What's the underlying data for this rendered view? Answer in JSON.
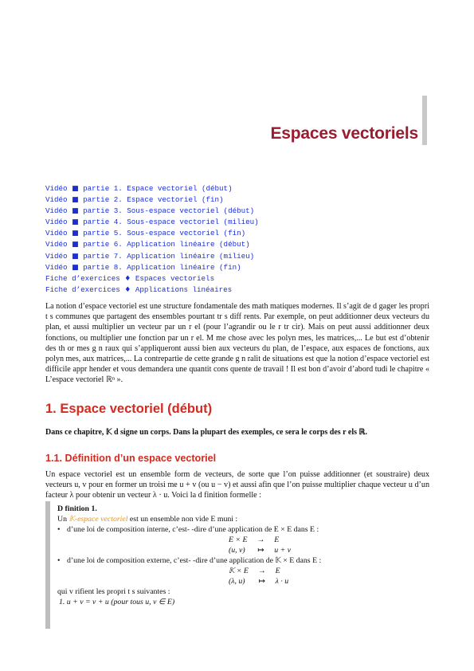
{
  "chapter": {
    "title": "Espaces vectoriels"
  },
  "links": [
    {
      "label": "Vidéo",
      "sym": "■",
      "text": "partie 1. Espace vectoriel (début)"
    },
    {
      "label": "Vidéo",
      "sym": "■",
      "text": "partie 2. Espace vectoriel (fin)"
    },
    {
      "label": "Vidéo",
      "sym": "■",
      "text": "partie 3. Sous-espace vectoriel (début)"
    },
    {
      "label": "Vidéo",
      "sym": "■",
      "text": "partie 4. Sous-espace vectoriel (milieu)"
    },
    {
      "label": "Vidéo",
      "sym": "■",
      "text": "partie 5. Sous-espace vectoriel (fin)"
    },
    {
      "label": "Vidéo",
      "sym": "■",
      "text": "partie 6. Application linéaire (début)"
    },
    {
      "label": "Vidéo",
      "sym": "■",
      "text": "partie 7. Application linéaire (milieu)"
    },
    {
      "label": "Vidéo",
      "sym": "■",
      "text": "partie 8. Application linéaire (fin)"
    },
    {
      "label": "Fiche d’exercices",
      "sym": "♦",
      "text": "Espaces vectoriels"
    },
    {
      "label": "Fiche d’exercices",
      "sym": "♦",
      "text": "Applications linéaires"
    }
  ],
  "intro": {
    "text": "La notion d’espace vectoriel est une structure fondamentale des math matiques modernes. Il s’agit de d gager les propri t s communes que partagent des ensembles pourtant tr s diff rents. Par exemple, on peut additionner deux vecteurs du plan, et aussi multiplier un vecteur par un r el (pour l’agrandir ou le r tr cir). Mais on peut aussi additionner deux fonctions, ou multiplier une fonction par un r el. M me chose avec les polyn mes, les matrices,... Le but est d’obtenir des th or mes g n raux qui s’appliqueront aussi bien aux vecteurs du plan, de l’espace, aux espaces de fonctions, aux polyn mes, aux matrices,... La contrepartie de cette grande g n ralit de situations est que la notion d’espace vectoriel est difficile appr hender et vous demandera une quantit cons quente de travail ! Il est bon d’avoir d’abord tudi le chapitre « L’espace vectoriel ℝⁿ »."
  },
  "section1": {
    "title": "1. Espace vectoriel (début)",
    "note": "Dans ce chapitre, 𝕂 d signe un corps. Dans la plupart des exemples, ce sera le corps des r els ℝ."
  },
  "subsection": {
    "title": "1.1. Définition d’un espace vectoriel",
    "intro": "Un espace vectoriel est un ensemble form de vecteurs, de sorte que l’on puisse additionner (et soustraire) deux vecteurs u, v pour en former un troisi me u + v (ou u − v) et aussi afin que l’on puisse multiplier chaque vecteur u d’un facteur λ pour obtenir un vecteur λ · u. Voici la d finition formelle :"
  },
  "definition": {
    "title": "D finition 1.",
    "line_pre": "Un ",
    "term": "𝕂-espace vectoriel",
    "line_post": " est un ensemble non vide E muni :",
    "bullet1": "d’une loi de composition interne, c’est- -dire d’une application de E × E dans E :",
    "math1_row1": [
      "E × E",
      "→",
      "E"
    ],
    "math1_row2": [
      "(u, v)",
      "↦",
      "u + v"
    ],
    "bullet2": "d’une loi de composition externe, c’est- -dire d’une application de 𝕂 × E dans E :",
    "math2_row1": [
      "𝕂 × E",
      "→",
      "E"
    ],
    "math2_row2": [
      "(λ, u)",
      "↦",
      "λ · u"
    ],
    "props_intro": "qui v rifient les propri t s suivantes :",
    "prop1": "1.  u + v = v + u     (pour tous u, v ∈ E)"
  }
}
